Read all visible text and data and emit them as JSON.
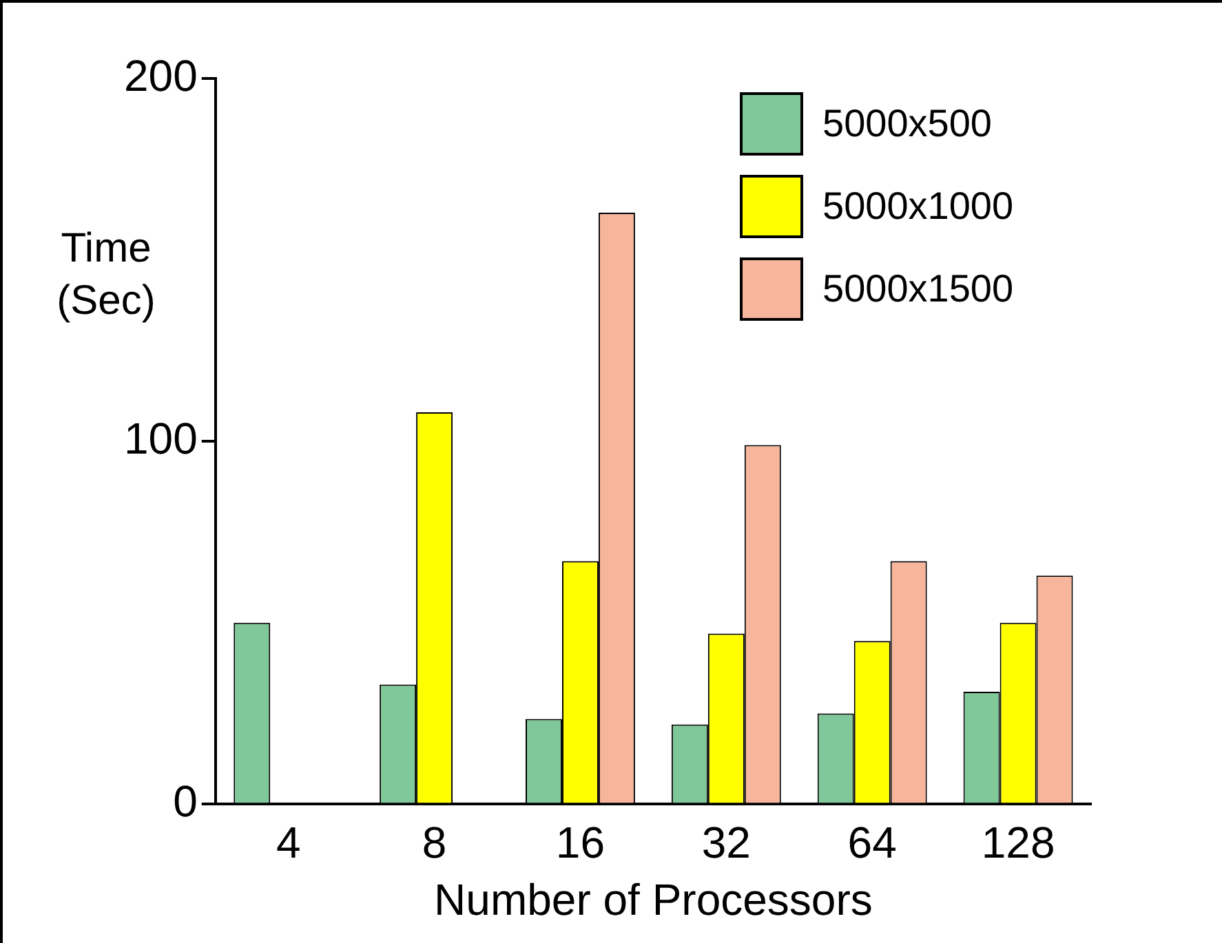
{
  "chart_data": {
    "type": "bar",
    "xlabel": "Number of Processors",
    "ylabel": "Time (Sec)",
    "categories": [
      "4",
      "8",
      "16",
      "32",
      "64",
      "128"
    ],
    "series": [
      {
        "name": "5000x500",
        "color": "#80c89a",
        "values": [
          50,
          33,
          23.5,
          22,
          25,
          31
        ]
      },
      {
        "name": "5000x1000",
        "color": "#ffff00",
        "values": [
          null,
          108,
          67,
          47,
          45,
          50
        ]
      },
      {
        "name": "5000x1500",
        "color": "#f7b69c",
        "values": [
          null,
          null,
          163,
          99,
          67,
          63
        ]
      }
    ],
    "ylim": [
      0,
      200
    ],
    "yticks": [
      0,
      100,
      200
    ],
    "grid": false,
    "legend": "top right"
  }
}
